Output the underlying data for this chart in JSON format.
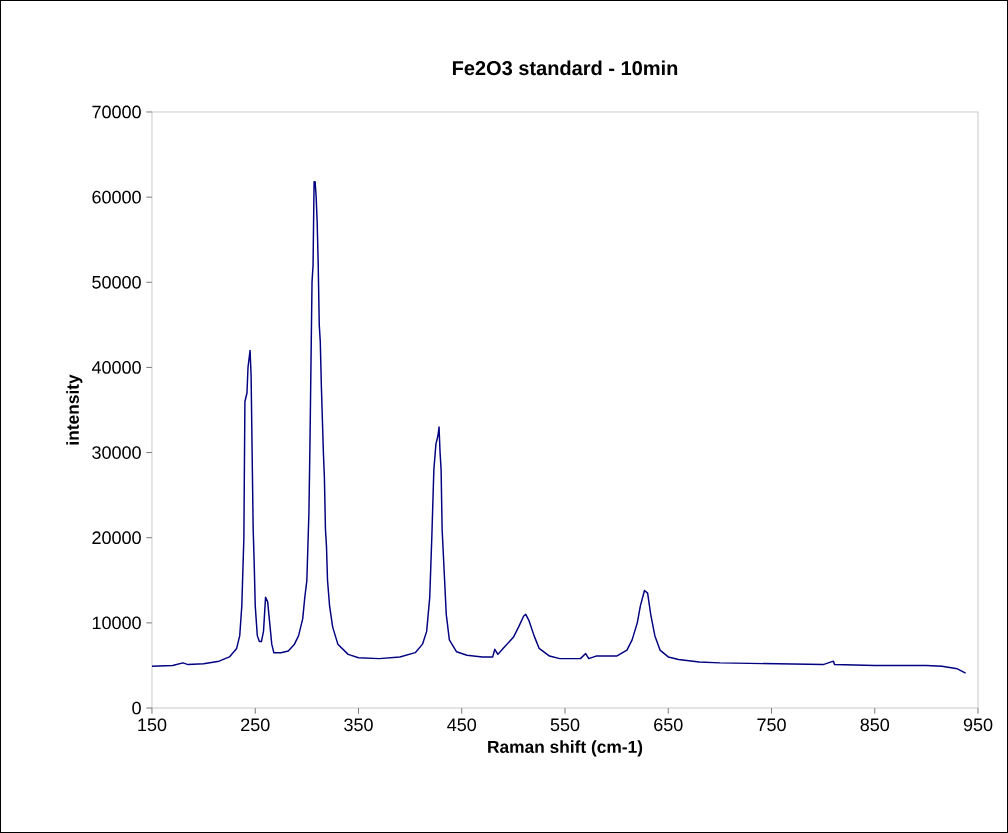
{
  "chart_data": {
    "type": "line",
    "title": "Fe2O3 standard - 10min",
    "xlabel": "Raman shift (cm-1)",
    "ylabel": "intensity",
    "xlim": [
      150,
      950
    ],
    "xticks": [
      150,
      250,
      350,
      450,
      550,
      650,
      750,
      850,
      950
    ],
    "ylim": [
      0,
      70000
    ],
    "yticks": [
      0,
      10000,
      20000,
      30000,
      40000,
      50000,
      60000,
      70000
    ],
    "grid": false,
    "marker": "none",
    "line_style": "solid",
    "series": [
      {
        "color": "#000080",
        "x": [
          150,
          170,
          180,
          185,
          200,
          215,
          225,
          232,
          235,
          237,
          239,
          240,
          242,
          243,
          245,
          246,
          247,
          248,
          249,
          250,
          252,
          254,
          256,
          258,
          259,
          260,
          262,
          264,
          266,
          268,
          275,
          282,
          288,
          292,
          296,
          298,
          300,
          302,
          303,
          305,
          306,
          307,
          308,
          309,
          310,
          311,
          312,
          313,
          314,
          316,
          317,
          318,
          319,
          320,
          322,
          325,
          330,
          340,
          350,
          370,
          390,
          405,
          412,
          416,
          419,
          421,
          423,
          425,
          427,
          428,
          429,
          430,
          431,
          433,
          435,
          438,
          445,
          455,
          470,
          480,
          482,
          485,
          490,
          500,
          505,
          510,
          512,
          515,
          520,
          525,
          535,
          545,
          565,
          570,
          573,
          580,
          600,
          610,
          615,
          620,
          623,
          627,
          630,
          633,
          637,
          642,
          650,
          660,
          680,
          700,
          750,
          800,
          810,
          811,
          850,
          900,
          915,
          930,
          938
        ],
        "values": [
          4900,
          5000,
          5300,
          5100,
          5200,
          5500,
          6000,
          7000,
          8500,
          12000,
          20000,
          36000,
          37000,
          40000,
          42000,
          39000,
          30000,
          21000,
          17000,
          12000,
          8500,
          7800,
          7800,
          9000,
          11000,
          13000,
          12500,
          10000,
          7500,
          6500,
          6500,
          6700,
          7500,
          8500,
          10500,
          13000,
          15000,
          23000,
          31000,
          50000,
          52000,
          61800,
          61800,
          60000,
          57000,
          52000,
          45000,
          43000,
          38000,
          30000,
          27000,
          21000,
          19000,
          15000,
          12000,
          9500,
          7500,
          6300,
          5900,
          5800,
          6000,
          6500,
          7500,
          9000,
          13000,
          20000,
          28000,
          31000,
          32000,
          33000,
          30000,
          28000,
          21000,
          16000,
          11000,
          8000,
          6600,
          6200,
          6000,
          6000,
          6900,
          6300,
          7000,
          8300,
          9500,
          10800,
          11000,
          10300,
          8500,
          7000,
          6100,
          5800,
          5800,
          6400,
          5800,
          6100,
          6100,
          6800,
          8000,
          10000,
          12000,
          13800,
          13500,
          11000,
          8500,
          6800,
          6000,
          5700,
          5400,
          5300,
          5200,
          5100,
          5500,
          5100,
          5000,
          5000,
          4900,
          4600,
          4100
        ]
      }
    ]
  }
}
